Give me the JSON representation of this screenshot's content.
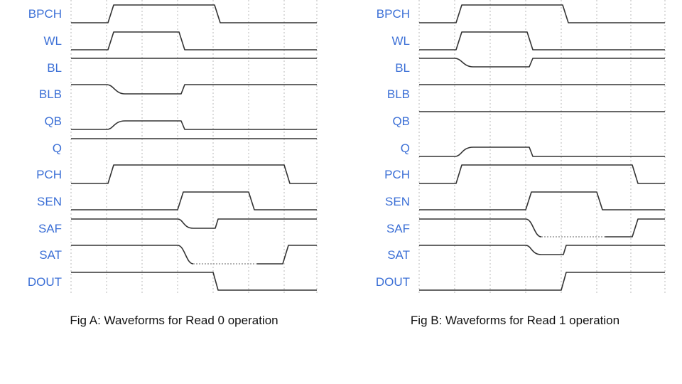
{
  "panels": [
    {
      "caption": "Fig A: Waveforms for Read 0 operation",
      "signals": [
        "BPCH",
        "WL",
        "BL",
        "BLB",
        "QB",
        "Q",
        "PCH",
        "SEN",
        "SAF",
        "SAT",
        "DOUT"
      ]
    },
    {
      "caption": "Fig B: Waveforms for Read 1 operation",
      "signals": [
        "BPCH",
        "WL",
        "BL",
        "BLB",
        "QB",
        "Q",
        "PCH",
        "SEN",
        "SAF",
        "SAT",
        "DOUT"
      ]
    }
  ]
}
